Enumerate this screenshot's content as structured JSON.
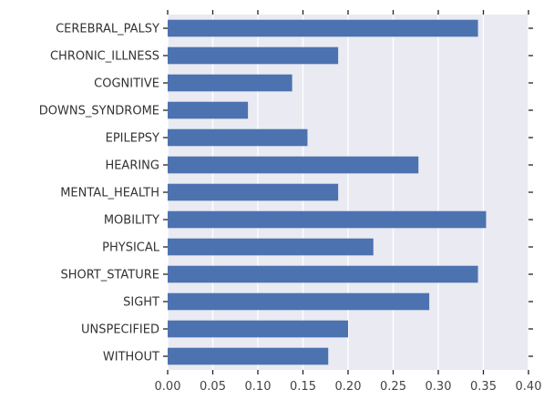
{
  "chart_data": {
    "type": "bar",
    "orientation": "horizontal",
    "categories": [
      "CEREBRAL_PALSY",
      "CHRONIC_ILLNESS",
      "COGNITIVE",
      "DOWNS_SYNDROME",
      "EPILEPSY",
      "HEARING",
      "MENTAL_HEALTH",
      "MOBILITY",
      "PHYSICAL",
      "SHORT_STATURE",
      "SIGHT",
      "UNSPECIFIED",
      "WITHOUT"
    ],
    "values": [
      0.344,
      0.189,
      0.138,
      0.089,
      0.155,
      0.278,
      0.189,
      0.353,
      0.228,
      0.344,
      0.29,
      0.2,
      0.178
    ],
    "xlim": [
      0,
      0.4
    ],
    "xticks": [
      "0.00",
      "0.05",
      "0.10",
      "0.15",
      "0.20",
      "0.25",
      "0.30",
      "0.35",
      "0.40"
    ],
    "grid": "vertical",
    "bar_color": "#4c72b0",
    "background_color": "#eaeaf2"
  }
}
